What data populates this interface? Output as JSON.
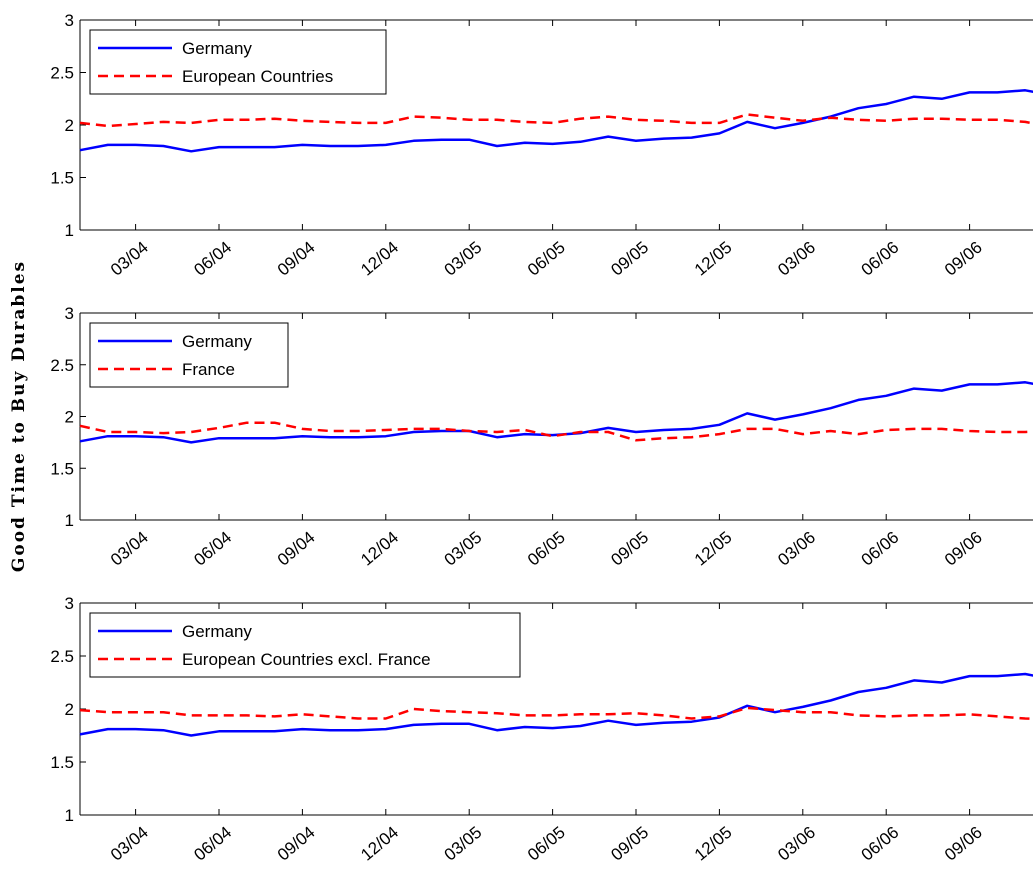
{
  "figure": {
    "ylabel": "Good Time to Buy Durables"
  },
  "chart_data": [
    {
      "type": "line",
      "x": [
        "01/04",
        "02/04",
        "03/04",
        "04/04",
        "05/04",
        "06/04",
        "07/04",
        "08/04",
        "09/04",
        "10/04",
        "11/04",
        "12/04",
        "01/05",
        "02/05",
        "03/05",
        "04/05",
        "05/05",
        "06/05",
        "07/05",
        "08/05",
        "09/05",
        "10/05",
        "11/05",
        "12/05",
        "01/06",
        "02/06",
        "03/06",
        "04/06",
        "05/06",
        "06/06",
        "07/06",
        "08/06",
        "09/06",
        "10/06",
        "11/06",
        "12/06"
      ],
      "xticklabels": [
        "03/04",
        "06/04",
        "09/04",
        "12/04",
        "03/05",
        "06/05",
        "09/05",
        "12/05",
        "03/06",
        "06/06",
        "09/06"
      ],
      "yticks": [
        1,
        1.5,
        2,
        2.5,
        3
      ],
      "yticklabels": [
        "1",
        "1.5",
        "2",
        "2.5",
        "3"
      ],
      "ylim": [
        1,
        3
      ],
      "grid": false,
      "legend_position": "top-left",
      "series": [
        {
          "name": "Germany",
          "color": "#0000ff",
          "style": "solid",
          "values": [
            1.76,
            1.81,
            1.81,
            1.8,
            1.75,
            1.79,
            1.79,
            1.79,
            1.81,
            1.8,
            1.8,
            1.81,
            1.85,
            1.86,
            1.86,
            1.8,
            1.83,
            1.82,
            1.84,
            1.89,
            1.85,
            1.87,
            1.88,
            1.92,
            2.03,
            1.97,
            2.02,
            2.08,
            2.16,
            2.2,
            2.27,
            2.25,
            2.31,
            2.31,
            2.33,
            2.28
          ]
        },
        {
          "name": "European Countries",
          "color": "#ff0000",
          "style": "dashed",
          "values": [
            2.02,
            1.99,
            2.01,
            2.03,
            2.02,
            2.05,
            2.05,
            2.06,
            2.04,
            2.03,
            2.02,
            2.02,
            2.08,
            2.07,
            2.05,
            2.05,
            2.03,
            2.02,
            2.06,
            2.08,
            2.05,
            2.04,
            2.02,
            2.02,
            2.1,
            2.07,
            2.04,
            2.07,
            2.05,
            2.04,
            2.06,
            2.06,
            2.05,
            2.05,
            2.03,
            1.98
          ]
        }
      ]
    },
    {
      "type": "line",
      "x": [
        "01/04",
        "02/04",
        "03/04",
        "04/04",
        "05/04",
        "06/04",
        "07/04",
        "08/04",
        "09/04",
        "10/04",
        "11/04",
        "12/04",
        "01/05",
        "02/05",
        "03/05",
        "04/05",
        "05/05",
        "06/05",
        "07/05",
        "08/05",
        "09/05",
        "10/05",
        "11/05",
        "12/05",
        "01/06",
        "02/06",
        "03/06",
        "04/06",
        "05/06",
        "06/06",
        "07/06",
        "08/06",
        "09/06",
        "10/06",
        "11/06",
        "12/06"
      ],
      "xticklabels": [
        "03/04",
        "06/04",
        "09/04",
        "12/04",
        "03/05",
        "06/05",
        "09/05",
        "12/05",
        "03/06",
        "06/06",
        "09/06"
      ],
      "yticks": [
        1,
        1.5,
        2,
        2.5,
        3
      ],
      "yticklabels": [
        "1",
        "1.5",
        "2",
        "2.5",
        "3"
      ],
      "ylim": [
        1,
        3
      ],
      "grid": false,
      "legend_position": "top-left",
      "series": [
        {
          "name": "Germany",
          "color": "#0000ff",
          "style": "solid",
          "values": [
            1.76,
            1.81,
            1.81,
            1.8,
            1.75,
            1.79,
            1.79,
            1.79,
            1.81,
            1.8,
            1.8,
            1.81,
            1.85,
            1.86,
            1.86,
            1.8,
            1.83,
            1.82,
            1.84,
            1.89,
            1.85,
            1.87,
            1.88,
            1.92,
            2.03,
            1.97,
            2.02,
            2.08,
            2.16,
            2.2,
            2.27,
            2.25,
            2.31,
            2.31,
            2.33,
            2.28
          ]
        },
        {
          "name": "France",
          "color": "#ff0000",
          "style": "dashed",
          "values": [
            1.91,
            1.85,
            1.85,
            1.84,
            1.85,
            1.89,
            1.94,
            1.94,
            1.88,
            1.86,
            1.86,
            1.87,
            1.88,
            1.88,
            1.86,
            1.85,
            1.87,
            1.81,
            1.85,
            1.85,
            1.77,
            1.79,
            1.8,
            1.83,
            1.88,
            1.88,
            1.83,
            1.86,
            1.83,
            1.87,
            1.88,
            1.88,
            1.86,
            1.85,
            1.85,
            1.86
          ]
        }
      ]
    },
    {
      "type": "line",
      "x": [
        "01/04",
        "02/04",
        "03/04",
        "04/04",
        "05/04",
        "06/04",
        "07/04",
        "08/04",
        "09/04",
        "10/04",
        "11/04",
        "12/04",
        "01/05",
        "02/05",
        "03/05",
        "04/05",
        "05/05",
        "06/05",
        "07/05",
        "08/05",
        "09/05",
        "10/05",
        "11/05",
        "12/05",
        "01/06",
        "02/06",
        "03/06",
        "04/06",
        "05/06",
        "06/06",
        "07/06",
        "08/06",
        "09/06",
        "10/06",
        "11/06",
        "12/06"
      ],
      "xticklabels": [
        "03/04",
        "06/04",
        "09/04",
        "12/04",
        "03/05",
        "06/05",
        "09/05",
        "12/05",
        "03/06",
        "06/06",
        "09/06"
      ],
      "yticks": [
        1,
        1.5,
        2,
        2.5,
        3
      ],
      "yticklabels": [
        "1",
        "1.5",
        "2",
        "2.5",
        "3"
      ],
      "ylim": [
        1,
        3
      ],
      "grid": false,
      "legend_position": "top-left",
      "series": [
        {
          "name": "Germany",
          "color": "#0000ff",
          "style": "solid",
          "values": [
            1.76,
            1.81,
            1.81,
            1.8,
            1.75,
            1.79,
            1.79,
            1.79,
            1.81,
            1.8,
            1.8,
            1.81,
            1.85,
            1.86,
            1.86,
            1.8,
            1.83,
            1.82,
            1.84,
            1.89,
            1.85,
            1.87,
            1.88,
            1.92,
            2.03,
            1.97,
            2.02,
            2.08,
            2.16,
            2.2,
            2.27,
            2.25,
            2.31,
            2.31,
            2.33,
            2.28
          ]
        },
        {
          "name": "European Countries excl. France",
          "color": "#ff0000",
          "style": "dashed",
          "values": [
            1.99,
            1.97,
            1.97,
            1.97,
            1.94,
            1.94,
            1.94,
            1.93,
            1.95,
            1.93,
            1.91,
            1.91,
            2.0,
            1.98,
            1.97,
            1.96,
            1.94,
            1.94,
            1.95,
            1.95,
            1.96,
            1.94,
            1.91,
            1.93,
            2.01,
            1.99,
            1.97,
            1.97,
            1.94,
            1.93,
            1.94,
            1.94,
            1.95,
            1.93,
            1.91,
            1.9
          ]
        }
      ]
    }
  ]
}
